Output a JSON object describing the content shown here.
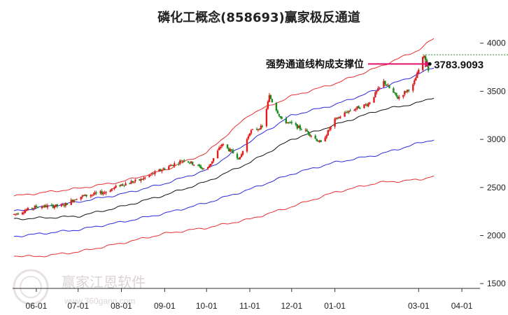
{
  "chart_data": {
    "type": "candlestick",
    "title": "磷化工概念(858693)赢家极反通道",
    "x_ticks": [
      "06-01",
      "07-01",
      "08-01",
      "09-01",
      "10-01",
      "11-01",
      "12-01",
      "01-01",
      "03-01",
      "04-01"
    ],
    "y_ticks": [
      1500,
      2000,
      2500,
      3000,
      3500,
      4000
    ],
    "ylim": [
      1450,
      4100
    ],
    "xlim": [
      "2023-05-15",
      "2024-04-14"
    ],
    "annotation": {
      "text": "强势通道线构成支撑位",
      "value_label": "3783.9093",
      "value": 3783.9093
    },
    "reference_level": 3880,
    "price_anchors": {
      "dates": [
        "2023-05-16",
        "2023-06-01",
        "2023-06-20",
        "2023-07-01",
        "2023-07-20",
        "2023-08-01",
        "2023-08-15",
        "2023-09-01",
        "2023-09-15",
        "2023-10-01",
        "2023-10-12",
        "2023-10-25",
        "2023-11-01",
        "2023-11-10",
        "2023-11-15",
        "2023-11-24",
        "2023-12-01",
        "2023-12-12",
        "2023-12-22",
        "2024-01-01",
        "2024-01-10",
        "2024-01-25",
        "2024-02-05",
        "2024-02-15",
        "2024-02-26",
        "2024-03-05",
        "2024-03-08"
      ],
      "values": [
        2220,
        2300,
        2310,
        2400,
        2450,
        2530,
        2580,
        2700,
        2790,
        2680,
        2950,
        2800,
        3080,
        3130,
        3450,
        3200,
        3160,
        3080,
        2960,
        3200,
        3290,
        3370,
        3600,
        3430,
        3560,
        3880,
        3720
      ]
    },
    "channels": [
      {
        "color": "#e83030",
        "dates": [
          "2023-05-16",
          "2023-07-01",
          "2023-08-01",
          "2023-09-01",
          "2023-10-01",
          "2023-11-01",
          "2023-12-01",
          "2024-01-01",
          "2024-02-01",
          "2024-03-01",
          "2024-03-12"
        ],
        "values": [
          2410,
          2490,
          2560,
          2680,
          2860,
          3260,
          3450,
          3580,
          3750,
          3930,
          4050
        ]
      },
      {
        "color": "#2a2ae0",
        "dates": [
          "2023-05-16",
          "2023-07-01",
          "2023-08-01",
          "2023-09-01",
          "2023-10-01",
          "2023-11-01",
          "2023-12-01",
          "2024-01-01",
          "2024-02-01",
          "2024-03-01",
          "2024-03-12"
        ],
        "values": [
          2250,
          2350,
          2430,
          2540,
          2680,
          2980,
          3250,
          3360,
          3520,
          3680,
          3750
        ]
      },
      {
        "color": "#111111",
        "dates": [
          "2023-05-16",
          "2023-07-01",
          "2023-08-01",
          "2023-09-01",
          "2023-10-01",
          "2023-11-01",
          "2023-12-01",
          "2024-01-01",
          "2024-02-01",
          "2024-03-01",
          "2024-03-12"
        ],
        "values": [
          2170,
          2200,
          2300,
          2420,
          2560,
          2760,
          3000,
          3150,
          3300,
          3380,
          3440
        ]
      },
      {
        "color": "#2a2ae0",
        "dates": [
          "2023-05-16",
          "2023-07-01",
          "2023-08-01",
          "2023-09-01",
          "2023-10-01",
          "2023-11-01",
          "2023-12-01",
          "2024-01-01",
          "2024-02-01",
          "2024-03-01",
          "2024-03-12"
        ],
        "values": [
          1990,
          2060,
          2140,
          2230,
          2340,
          2480,
          2640,
          2760,
          2840,
          2960,
          3000
        ]
      },
      {
        "color": "#e83030",
        "dates": [
          "2023-05-16",
          "2023-06-01",
          "2023-07-01",
          "2023-08-01",
          "2023-09-01",
          "2023-10-01",
          "2023-11-01",
          "2023-12-01",
          "2024-01-01",
          "2024-02-01",
          "2024-03-01",
          "2024-03-12"
        ],
        "values": [
          1790,
          1780,
          1830,
          1920,
          2020,
          2080,
          2170,
          2300,
          2450,
          2550,
          2580,
          2620
        ]
      }
    ],
    "up_color": "#e01c1c",
    "down_color": "#1b8a1b",
    "grid": false
  },
  "watermark": {
    "name": "赢家江恩软件",
    "url": "www.360gann.com"
  }
}
